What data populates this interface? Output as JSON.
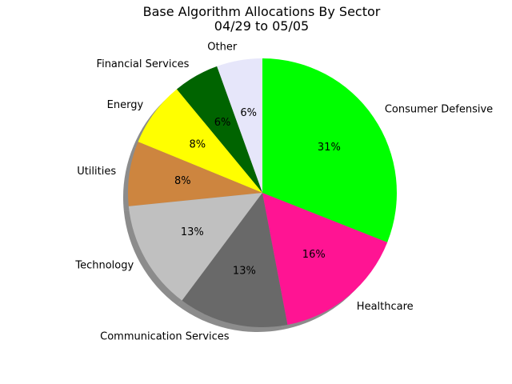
{
  "chart_data": {
    "type": "pie",
    "title": "Base Algorithm Allocations By Sector",
    "subtitle": "04/29 to 05/05",
    "start_angle_deg": 90,
    "direction": "counterclockwise",
    "shadow": true,
    "slices": [
      {
        "label": "Other",
        "value": 5.5,
        "pct_label": "6%",
        "color": "#e6e6fa"
      },
      {
        "label": "Financial Services",
        "value": 5.5,
        "pct_label": "6%",
        "color": "#006400"
      },
      {
        "label": "Energy",
        "value": 7.8,
        "pct_label": "8%",
        "color": "#ffff00"
      },
      {
        "label": "Utilities",
        "value": 7.8,
        "pct_label": "8%",
        "color": "#cd853f"
      },
      {
        "label": "Technology",
        "value": 13.2,
        "pct_label": "13%",
        "color": "#c0c0c0"
      },
      {
        "label": "Communication Services",
        "value": 13.2,
        "pct_label": "13%",
        "color": "#696969"
      },
      {
        "label": "Healthcare",
        "value": 16.0,
        "pct_label": "16%",
        "color": "#ff1493"
      },
      {
        "label": "Consumer Defensive",
        "value": 31.0,
        "pct_label": "31%",
        "color": "#00ff00"
      }
    ]
  }
}
